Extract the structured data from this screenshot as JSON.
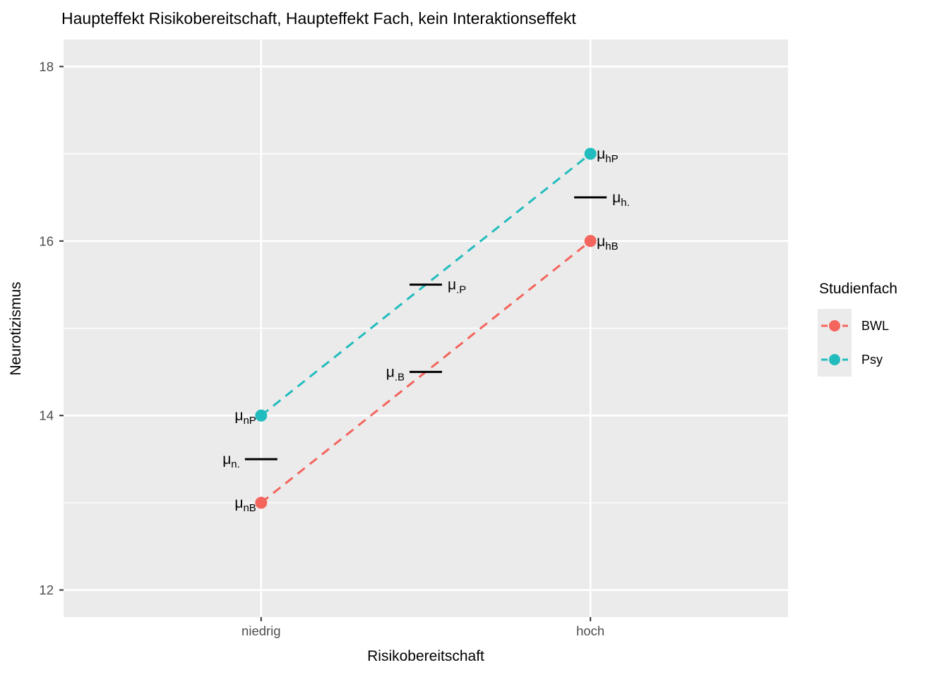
{
  "title": "Haupteffekt Risikobereitschaft, Haupteffekt Fach, kein Interaktionseffekt",
  "legend": {
    "title": "Studienfach",
    "entries": [
      {
        "label": "BWL",
        "color": "#F3655D"
      },
      {
        "label": "Psy",
        "color": "#23BCBE"
      }
    ]
  },
  "colors": {
    "panel_bg": "#EBEBEB",
    "grid": "#FFFFFF",
    "tick_mark": "#333333",
    "tick_text": "#4D4D4D",
    "annotation": "#000000",
    "bwl": "#F3655D",
    "psy": "#23BCBE"
  },
  "chart_data": {
    "type": "line",
    "title": "Haupteffekt Risikobereitschaft, Haupteffekt Fach, kein Interaktionseffekt",
    "xlabel": "Risikobereitschaft",
    "ylabel": "Neurotizismus",
    "categories": [
      "niedrig",
      "hoch"
    ],
    "series": [
      {
        "name": "BWL",
        "color": "#F3655D",
        "values": [
          13,
          16
        ],
        "linestyle": "dashed",
        "marker": "circle"
      },
      {
        "name": "Psy",
        "color": "#23BCBE",
        "values": [
          14,
          17
        ],
        "linestyle": "dashed",
        "marker": "circle"
      }
    ],
    "y_ticks": [
      12,
      14,
      16,
      18
    ],
    "y_minor_ticks": [
      13,
      15,
      17
    ],
    "ylim": [
      11.69,
      18.31
    ],
    "grid": true,
    "legend_position": "right",
    "legend_title": "Studienfach",
    "mean_segments": [
      {
        "at": "niedrig",
        "y": 13.5,
        "label_base": "μ",
        "label_sub": "n.",
        "label_side": "left"
      },
      {
        "at": "mid",
        "y": 14.5,
        "label_base": "μ",
        "label_sub": ".B",
        "label_side": "left"
      },
      {
        "at": "mid",
        "y": 15.5,
        "label_base": "μ",
        "label_sub": ".P",
        "label_side": "right"
      },
      {
        "at": "hoch",
        "y": 16.5,
        "label_base": "μ",
        "label_sub": "h.",
        "label_side": "right"
      }
    ],
    "point_labels": [
      {
        "base": "μ",
        "sub": "nP",
        "at": "niedrig",
        "y": 14,
        "side": "left"
      },
      {
        "base": "μ",
        "sub": "nB",
        "at": "niedrig",
        "y": 13,
        "side": "left"
      },
      {
        "base": "μ",
        "sub": "hP",
        "at": "hoch",
        "y": 17,
        "side": "right"
      },
      {
        "base": "μ",
        "sub": "hB",
        "at": "hoch",
        "y": 16,
        "side": "right"
      }
    ]
  }
}
